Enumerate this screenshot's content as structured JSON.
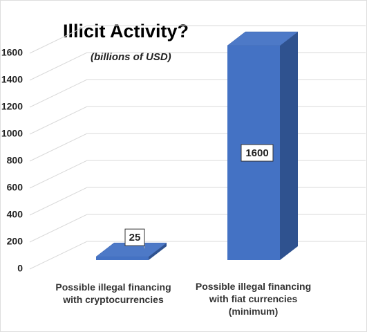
{
  "chart_data": {
    "type": "bar",
    "title": "Illicit Activity?",
    "subtitle": "(billions of USD)",
    "categories": [
      "Possible illegal financing with cryptocurrencies",
      "Possible illegal financing with fiat currencies (minimum)"
    ],
    "values": [
      25,
      1600
    ],
    "color": "#4472c4",
    "ylim": [
      0,
      1600
    ],
    "yticks": [
      0,
      200,
      400,
      600,
      800,
      1000,
      1200,
      1400,
      1600
    ],
    "grid": true
  }
}
